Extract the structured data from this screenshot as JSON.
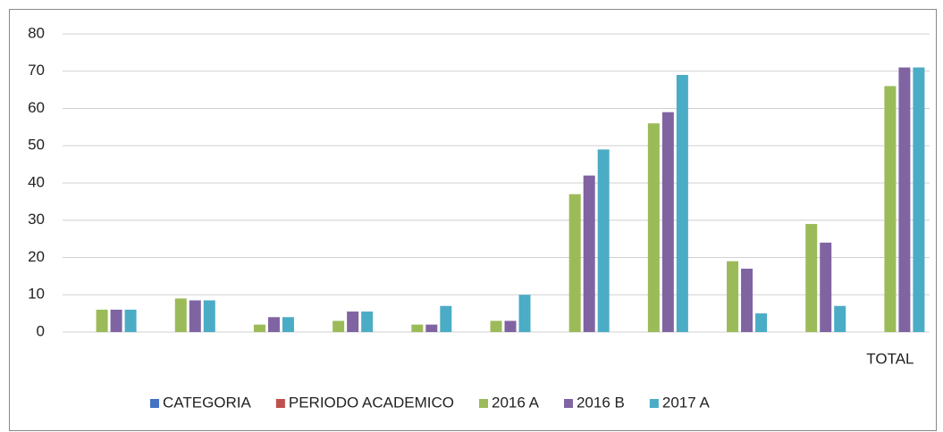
{
  "chart_data": {
    "type": "bar",
    "categories": [
      null,
      null,
      null,
      null,
      null,
      null,
      null,
      null,
      null,
      null,
      "TOTAL"
    ],
    "series": [
      {
        "name": "CATEGORIA",
        "color": "#4472c4",
        "values": [
          null,
          null,
          null,
          null,
          null,
          null,
          null,
          null,
          null,
          null,
          null
        ]
      },
      {
        "name": "PERIODO ACADEMICO",
        "color": "#c0504d",
        "values": [
          null,
          null,
          null,
          null,
          null,
          null,
          null,
          null,
          null,
          null,
          null
        ]
      },
      {
        "name": "2016 A",
        "color": "#9bbb59",
        "values": [
          6,
          9,
          2,
          3,
          2,
          3,
          37,
          56,
          19,
          29,
          66
        ]
      },
      {
        "name": "2016 B",
        "color": "#8064a2",
        "values": [
          6,
          8.5,
          4,
          5.5,
          2,
          3,
          42,
          59,
          17,
          24,
          71
        ]
      },
      {
        "name": "2017 A",
        "color": "#4bacc6",
        "values": [
          6,
          8.5,
          4,
          5.5,
          7,
          10,
          49,
          69,
          5,
          7,
          71
        ]
      }
    ],
    "ylim": [
      0,
      80
    ],
    "yticks": [
      0,
      10,
      20,
      30,
      40,
      50,
      60,
      70,
      80
    ],
    "grid": true,
    "legend": "bottom"
  }
}
